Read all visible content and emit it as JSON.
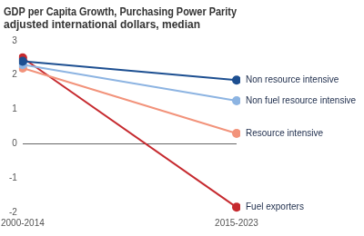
{
  "chart_data": {
    "type": "line",
    "title": "GDP per Capita Growth, Purchasing Power Parity adjusted international dollars, median",
    "categories": [
      "2000-2014",
      "2015-2023"
    ],
    "series": [
      {
        "name": "Non resource intensive",
        "color": "#1d4f91",
        "values": [
          2.4,
          1.85
        ]
      },
      {
        "name": "Non fuel resource intensive",
        "color": "#8db4e2",
        "values": [
          2.3,
          1.25
        ]
      },
      {
        "name": "Resource intensive",
        "color": "#f2937b",
        "values": [
          2.2,
          0.3
        ]
      },
      {
        "name": "Fuel exporters",
        "color": "#c62a2f",
        "values": [
          2.5,
          -1.85
        ]
      }
    ],
    "ylim": [
      -2,
      3
    ],
    "yticks": [
      -2,
      -1,
      0,
      1,
      2,
      3
    ],
    "grid": false,
    "marker": "circle"
  }
}
